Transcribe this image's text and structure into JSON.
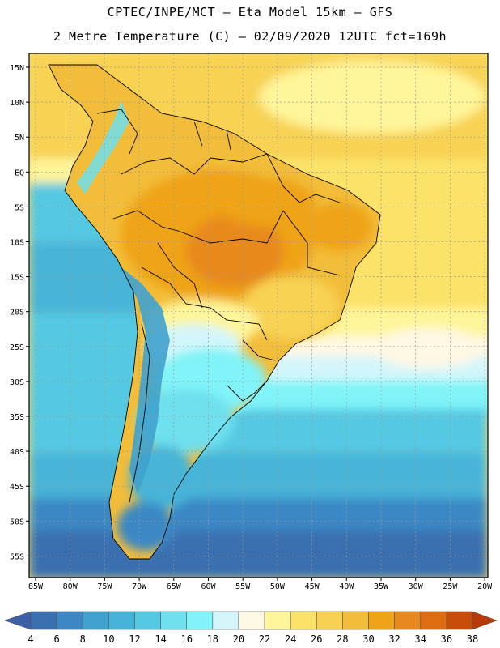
{
  "header": {
    "line1": "CPTEC/INPE/MCT –  Eta Model 15km – GFS",
    "line2": "2 Metre Temperature (C) – 02/09/2020 12UTC fct=169h"
  },
  "map": {
    "lat_labels": [
      "15N",
      "10N",
      "5N",
      "EQ",
      "5S",
      "10S",
      "15S",
      "20S",
      "25S",
      "30S",
      "35S",
      "40S",
      "45S",
      "50S",
      "55S"
    ],
    "lon_labels": [
      "85W",
      "80W",
      "75W",
      "70W",
      "65W",
      "60W",
      "55W",
      "50W",
      "45W",
      "40W",
      "35W",
      "30W",
      "25W",
      "20W"
    ]
  },
  "colorbar": {
    "labels": [
      "4",
      "6",
      "8",
      "10",
      "12",
      "14",
      "16",
      "18",
      "20",
      "22",
      "24",
      "26",
      "28",
      "30",
      "32",
      "34",
      "36",
      "38"
    ],
    "colors": [
      "#3a6fb0",
      "#3b88c4",
      "#3fa2cf",
      "#46b4d8",
      "#55c8e2",
      "#6ee0ee",
      "#80f4f8",
      "#d3f6fb",
      "#fff8e4",
      "#fff59a",
      "#fbe36a",
      "#f7d252",
      "#f2bd3a",
      "#efa318",
      "#e8891f",
      "#dd6d10",
      "#c84c0a"
    ]
  }
}
